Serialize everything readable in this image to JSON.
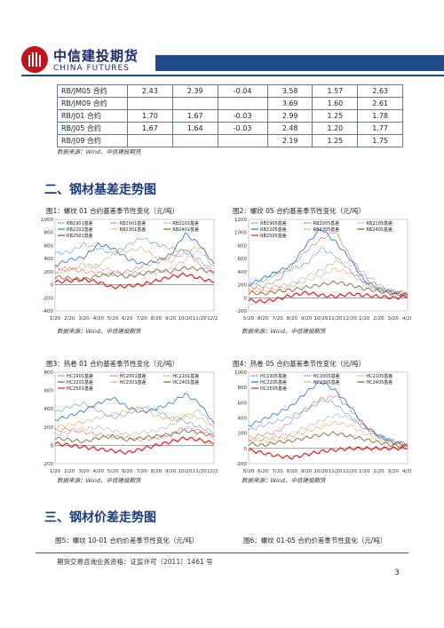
{
  "header": {
    "logo_cn": "中信建投期货",
    "logo_en": "CHINA FUTURES",
    "band_color": "#1e4a8a",
    "logo_color": "#c0151f"
  },
  "table": {
    "rows": [
      {
        "name": "RB/JM05 合约",
        "c1": "2.43",
        "c2": "2.39",
        "c3": "-0.04",
        "c4": "3.58",
        "c5": "1.57",
        "c6": "2.63"
      },
      {
        "name": "RB/JM09 合约",
        "c1": "",
        "c2": "",
        "c3": "",
        "c4": "3.69",
        "c5": "1.60",
        "c6": "2.61"
      },
      {
        "name": "RB/J01 合约",
        "c1": "1.70",
        "c2": "1.67",
        "c3": "-0.03",
        "c4": "2.99",
        "c5": "1.25",
        "c6": "1.78"
      },
      {
        "name": "RB/J05 合约",
        "c1": "1.67",
        "c2": "1.64",
        "c3": "-0.03",
        "c4": "2.48",
        "c5": "1.20",
        "c6": "1.77"
      },
      {
        "name": "RB/J09 合约",
        "c1": "",
        "c2": "",
        "c3": "",
        "c4": "2.19",
        "c5": "1.25",
        "c6": "1.75"
      }
    ],
    "source": "数据来源：Wind，中信建投期货"
  },
  "section2": {
    "title": "二、钢材基差走势图"
  },
  "section3": {
    "title": "三、钢材价差走势图"
  },
  "figures": {
    "fig1": {
      "title": "图1：螺纹 01 合约基差季节性变化（元/吨）",
      "source": "数据来源：Wind，中信建投期货"
    },
    "fig2": {
      "title": "图2：螺纹 05 合约基差季节性变化（元/吨）",
      "source": "数据来源：Wind，中信建投期货"
    },
    "fig3": {
      "title": "图3：热卷 01 合约基差季节性变化（元/吨）",
      "source": "数据来源：Wind，中信建投期货"
    },
    "fig4": {
      "title": "图4：热卷 05 合约基差季节性变化（元/吨）",
      "source": "数据来源：Wind，中信建投期货"
    },
    "fig5": {
      "title": "图5：螺纹 10-01 合约价差季节性变化（元/吨）"
    },
    "fig6": {
      "title": "图6：螺纹 01-05 合约价差季节性变化（元/吨）"
    }
  },
  "footer": {
    "text": "期货交易咨询业务资格：证监许可〔2011〕1461 号",
    "page": "3"
  },
  "chart_data": [
    {
      "type": "line",
      "id": "fig1",
      "title": "图1：螺纹 01 合约基差季节性变化（元/吨）",
      "x_ticks": [
        "1/20",
        "2/20",
        "3/20",
        "4/20",
        "5/20",
        "6/20",
        "7/20",
        "8/20",
        "9/20",
        "10/20",
        "11/20",
        "12/20"
      ],
      "y_ticks": [
        "1000",
        "800",
        "600",
        "400",
        "200",
        "0",
        "-200",
        "-400"
      ],
      "ylim": [
        -400,
        1000
      ],
      "series": [
        {
          "name": "RB1901基差",
          "color": "#4a78b8",
          "values": [
            480,
            500,
            620,
            560,
            470,
            600,
            720,
            620,
            560,
            500,
            380,
            200
          ]
        },
        {
          "name": "RB2001基差",
          "color": "#c0504d",
          "values": [
            260,
            240,
            200,
            180,
            160,
            200,
            280,
            340,
            420,
            560,
            300,
            180
          ]
        },
        {
          "name": "RB2101基差",
          "color": "#9a9a9a",
          "values": [
            180,
            220,
            320,
            260,
            220,
            160,
            200,
            180,
            240,
            380,
            520,
            280
          ]
        },
        {
          "name": "RB2201基差",
          "color": "#2e6fb8",
          "values": [
            300,
            380,
            420,
            620,
            560,
            400,
            320,
            360,
            460,
            780,
            620,
            320
          ]
        },
        {
          "name": "RB2301基差",
          "color": "#e08a2e",
          "values": [
            200,
            240,
            260,
            300,
            480,
            520,
            560,
            420,
            360,
            500,
            580,
            320
          ]
        },
        {
          "name": "RB2401基差",
          "color": "#7a5a2a",
          "values": [
            120,
            100,
            80,
            140,
            160,
            120,
            160,
            220,
            200,
            260,
            240,
            180
          ]
        },
        {
          "name": "RB2501基差",
          "color": "#e02020",
          "values": [
            40,
            60,
            80,
            40,
            -40,
            -20,
            0,
            60,
            120,
            160,
            100,
            40
          ]
        }
      ]
    },
    {
      "type": "line",
      "id": "fig2",
      "title": "图2：螺纹 05 合约基差季节性变化（元/吨）",
      "x_ticks": [
        "5/20",
        "6/20",
        "7/20",
        "8/20",
        "9/20",
        "10/20",
        "11/20",
        "12/20",
        "1/20",
        "2/20",
        "3/20",
        "4/20"
      ],
      "y_ticks": [
        "1200",
        "1000",
        "800",
        "600",
        "400",
        "200",
        "0",
        "-200"
      ],
      "ylim": [
        -200,
        1200
      ],
      "series": [
        {
          "name": "RB1905基差",
          "color": "#4a78b8",
          "values": [
            200,
            260,
            380,
            440,
            520,
            760,
            640,
            420,
            240,
            120,
            100,
            80
          ]
        },
        {
          "name": "RB2005基差",
          "color": "#c0504d",
          "values": [
            160,
            180,
            260,
            480,
            720,
            900,
            1020,
            640,
            320,
            160,
            80,
            60
          ]
        },
        {
          "name": "RB2105基差",
          "color": "#9a9a9a",
          "values": [
            120,
            140,
            180,
            220,
            320,
            420,
            560,
            520,
            380,
            200,
            100,
            60
          ]
        },
        {
          "name": "RB2205基差",
          "color": "#2e6fb8",
          "values": [
            200,
            300,
            400,
            500,
            820,
            1060,
            860,
            600,
            260,
            140,
            80,
            40
          ]
        },
        {
          "name": "RB2305基差",
          "color": "#e08a2e",
          "values": [
            120,
            100,
            140,
            180,
            260,
            340,
            440,
            380,
            220,
            120,
            80,
            60
          ]
        },
        {
          "name": "RB2405基差",
          "color": "#7a5a2a",
          "values": [
            80,
            60,
            100,
            120,
            160,
            200,
            240,
            200,
            140,
            100,
            60,
            40
          ]
        },
        {
          "name": "RB2505基差",
          "color": "#e02020",
          "values": [
            -40,
            -60,
            -20,
            40,
            80,
            40,
            20,
            60,
            40,
            20,
            0,
            20
          ]
        }
      ]
    },
    {
      "type": "line",
      "id": "fig3",
      "title": "图3：热卷 01 合约基差季节性变化（元/吨）",
      "x_ticks": [
        "1/20",
        "2/20",
        "3/20",
        "4/20",
        "5/20",
        "6/20",
        "7/20",
        "8/20",
        "9/20",
        "10/20",
        "11/20",
        "12/20"
      ],
      "y_ticks": [
        "800",
        "600",
        "400",
        "200",
        "0",
        "-200"
      ],
      "ylim": [
        -200,
        800
      ],
      "series": [
        {
          "name": "HC1901基差",
          "color": "#4a78b8",
          "values": [
            360,
            420,
            460,
            380,
            300,
            340,
            420,
            380,
            300,
            260,
            200,
            140
          ]
        },
        {
          "name": "HC2001基差",
          "color": "#c0504d",
          "values": [
            160,
            180,
            140,
            120,
            100,
            80,
            60,
            80,
            120,
            200,
            160,
            100
          ]
        },
        {
          "name": "HC2101基差",
          "color": "#9a9a9a",
          "values": [
            120,
            140,
            180,
            200,
            160,
            120,
            140,
            160,
            220,
            320,
            380,
            200
          ]
        },
        {
          "name": "HC2201基差",
          "color": "#2e6fb8",
          "values": [
            280,
            320,
            380,
            460,
            520,
            420,
            360,
            400,
            460,
            560,
            460,
            240
          ]
        },
        {
          "name": "HC2301基差",
          "color": "#e08a2e",
          "values": [
            200,
            220,
            260,
            300,
            340,
            380,
            400,
            320,
            280,
            320,
            300,
            200
          ]
        },
        {
          "name": "HC2401基差",
          "color": "#7a5a2a",
          "values": [
            80,
            60,
            40,
            80,
            100,
            60,
            80,
            100,
            120,
            160,
            140,
            100
          ]
        },
        {
          "name": "HC2501基差",
          "color": "#e02020",
          "values": [
            20,
            0,
            -20,
            -40,
            -60,
            -80,
            -40,
            0,
            40,
            80,
            60,
            20
          ]
        }
      ]
    },
    {
      "type": "line",
      "id": "fig4",
      "title": "图4：热卷 05 合约基差季节性变化（元/吨）",
      "x_ticks": [
        "5/20",
        "6/20",
        "7/20",
        "8/20",
        "9/20",
        "10/20",
        "11/20",
        "12/20",
        "1/20",
        "2/20",
        "3/20",
        "4/20"
      ],
      "y_ticks": [
        "1000",
        "800",
        "600",
        "400",
        "200",
        "0",
        "-200"
      ],
      "ylim": [
        -200,
        1000
      ],
      "series": [
        {
          "name": "HC1905基差",
          "color": "#4a78b8",
          "values": [
            240,
            300,
            360,
            420,
            520,
            660,
            580,
            420,
            260,
            160,
            100,
            60
          ]
        },
        {
          "name": "HC2005基差",
          "color": "#c0504d",
          "values": [
            140,
            180,
            220,
            360,
            500,
            620,
            700,
            520,
            300,
            160,
            80,
            40
          ]
        },
        {
          "name": "HC2105基差",
          "color": "#9a9a9a",
          "values": [
            100,
            120,
            160,
            200,
            280,
            360,
            440,
            400,
            300,
            180,
            100,
            60
          ]
        },
        {
          "name": "HC2205基差",
          "color": "#2e6fb8",
          "values": [
            300,
            380,
            460,
            560,
            740,
            880,
            760,
            560,
            300,
            160,
            80,
            40
          ]
        },
        {
          "name": "HC2305基差",
          "color": "#e08a2e",
          "values": [
            120,
            100,
            120,
            160,
            220,
            280,
            340,
            300,
            200,
            120,
            60,
            40
          ]
        },
        {
          "name": "HC2405基差",
          "color": "#7a5a2a",
          "values": [
            60,
            40,
            80,
            100,
            140,
            180,
            200,
            160,
            120,
            80,
            40,
            20
          ]
        },
        {
          "name": "HC2505基差",
          "color": "#e02020",
          "values": [
            -20,
            -60,
            -100,
            -120,
            -80,
            -40,
            -20,
            0,
            0,
            0,
            0,
            0
          ]
        }
      ]
    }
  ]
}
